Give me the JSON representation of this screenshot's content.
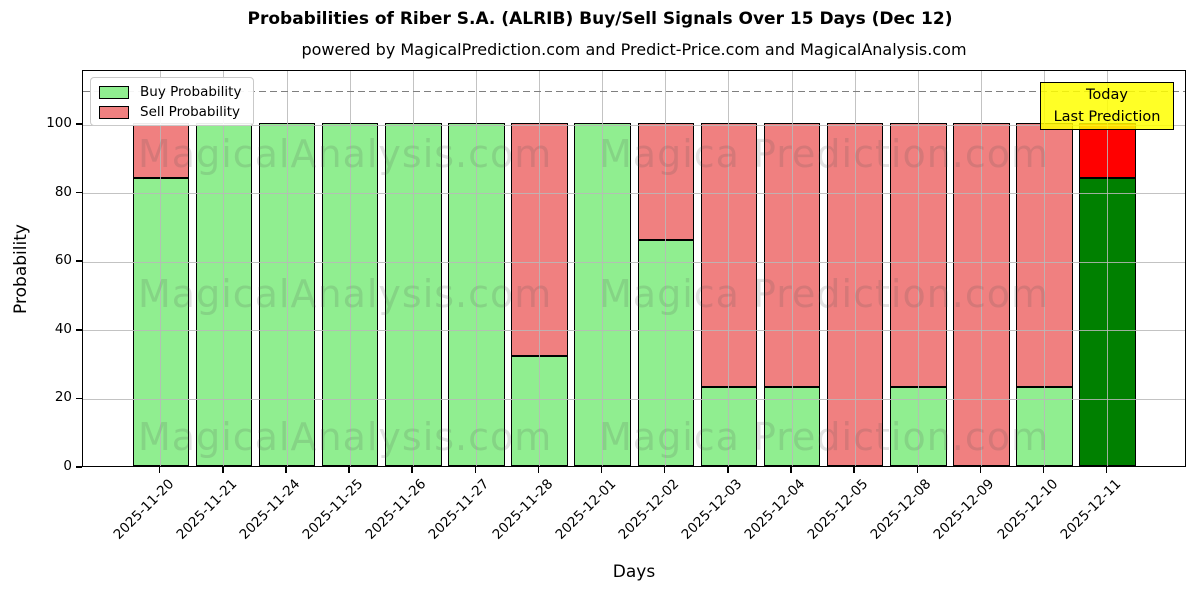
{
  "title": "Probabilities of Riber S.A. (ALRIB) Buy/Sell Signals Over 15 Days (Dec 12)",
  "subtitle": "powered by MagicalPrediction.com and Predict-Price.com and MagicalAnalysis.com",
  "legend": {
    "buy_label": "Buy Probability",
    "sell_label": "Sell Probability"
  },
  "annotation": {
    "line1": "Today",
    "line2": "Last Prediction",
    "bg_color": "#FFFF00"
  },
  "watermarks": {
    "left_text": "MagicalAnalysis.com",
    "right_text": "Magica Prediction.com"
  },
  "colors": {
    "buy": "#90EE90",
    "sell": "#F08080",
    "last_buy": "#008000",
    "last_sell": "#FF0000",
    "grid": "#b9b9b9",
    "dashed_line": "#7f7f7f"
  },
  "chart_data": {
    "type": "bar",
    "stacked": true,
    "title": "Probabilities of Riber S.A. (ALRIB) Buy/Sell Signals Over 15 Days (Dec 12)",
    "xlabel": "Days",
    "ylabel": "Probability",
    "yticks": [
      0,
      20,
      40,
      60,
      80,
      100
    ],
    "ylim": [
      0,
      116
    ],
    "dashed_guideline_y": 110,
    "grid": true,
    "legend_position": "upper left",
    "categories": [
      "2025-11-20",
      "2025-11-21",
      "2025-11-24",
      "2025-11-25",
      "2025-11-26",
      "2025-11-27",
      "2025-11-28",
      "2025-12-01",
      "2025-12-02",
      "2025-12-03",
      "2025-12-04",
      "2025-12-05",
      "2025-12-08",
      "2025-12-09",
      "2025-12-10",
      "2025-12-11"
    ],
    "series": [
      {
        "name": "Buy Probability",
        "color": "#90EE90",
        "values": [
          84,
          100,
          100,
          100,
          100,
          100,
          32,
          100,
          66,
          23,
          23,
          0,
          23,
          0,
          23,
          84
        ]
      },
      {
        "name": "Sell Probability",
        "color": "#F08080",
        "values": [
          16,
          0,
          0,
          0,
          0,
          0,
          68,
          0,
          34,
          77,
          77,
          100,
          77,
          100,
          77,
          16
        ]
      }
    ],
    "last_bar_highlight": {
      "buy_color": "#008000",
      "sell_color": "#FF0000",
      "note": "Today / Last Prediction"
    }
  }
}
